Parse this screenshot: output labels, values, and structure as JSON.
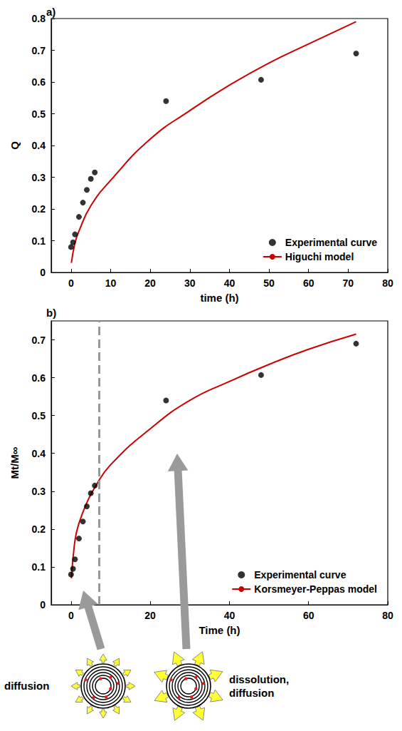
{
  "chart_data": [
    {
      "type": "scatter",
      "panel": "a)",
      "x_label": "time (h)",
      "y_label": "Q",
      "xlim": [
        -5,
        80
      ],
      "xticks": [
        0,
        10,
        20,
        30,
        40,
        50,
        60,
        70,
        80
      ],
      "ylim": [
        0,
        0.8
      ],
      "yticks": [
        0,
        0.1,
        0.2,
        0.3,
        0.4,
        0.5,
        0.6,
        0.7,
        0.8
      ],
      "legend": "lower right",
      "grid": false,
      "series": [
        {
          "name": "Experimental curve",
          "type": "scatter",
          "color": "#000000",
          "marker": "circle",
          "x": [
            0,
            0.5,
            1,
            2,
            3,
            4,
            5,
            6,
            24,
            48,
            72
          ],
          "values": [
            0.08,
            0.095,
            0.12,
            0.175,
            0.22,
            0.26,
            0.295,
            0.315,
            0.54,
            0.607,
            0.69
          ]
        },
        {
          "name": "Higuchi model",
          "type": "line",
          "color": "#cc0000",
          "line_style": "solid",
          "x": [
            0.1,
            1,
            2,
            5,
            10,
            20,
            30,
            40,
            50,
            60,
            72
          ],
          "values": [
            0.03,
            0.093,
            0.13,
            0.21,
            0.29,
            0.42,
            0.51,
            0.59,
            0.66,
            0.72,
            0.79
          ]
        }
      ]
    },
    {
      "type": "scatter",
      "panel": "b)",
      "x_label": "Time (h)",
      "y_label": "Mt/M∞",
      "xlim": [
        -5,
        80
      ],
      "xticks": [
        0,
        20,
        40,
        60,
        80
      ],
      "ylim": [
        0,
        0.75
      ],
      "yticks": [
        0,
        0.1,
        0.2,
        0.3,
        0.4,
        0.5,
        0.6,
        0.7
      ],
      "legend": "lower right",
      "grid": false,
      "vline": {
        "x": 7,
        "color": "#999999",
        "line_style": "dashed"
      },
      "series": [
        {
          "name": "Experimental curve",
          "type": "scatter",
          "color": "#000000",
          "marker": "circle",
          "x": [
            0,
            0.5,
            1,
            2,
            3,
            4,
            5,
            6,
            24,
            48,
            72
          ],
          "values": [
            0.08,
            0.095,
            0.12,
            0.175,
            0.22,
            0.26,
            0.295,
            0.315,
            0.54,
            0.607,
            0.69
          ]
        },
        {
          "name": "Korsmeyer-Peppas model",
          "type": "line",
          "color": "#cc0000",
          "line_style": "solid",
          "x": [
            0.1,
            1,
            2,
            4,
            6,
            10,
            20,
            30,
            40,
            50,
            60,
            72
          ],
          "values": [
            0.07,
            0.17,
            0.215,
            0.27,
            0.31,
            0.37,
            0.465,
            0.54,
            0.59,
            0.635,
            0.675,
            0.715
          ]
        }
      ]
    }
  ],
  "diagram": {
    "left_label": "diffusion",
    "right_label": [
      "dissolution,",
      "diffusion"
    ]
  }
}
